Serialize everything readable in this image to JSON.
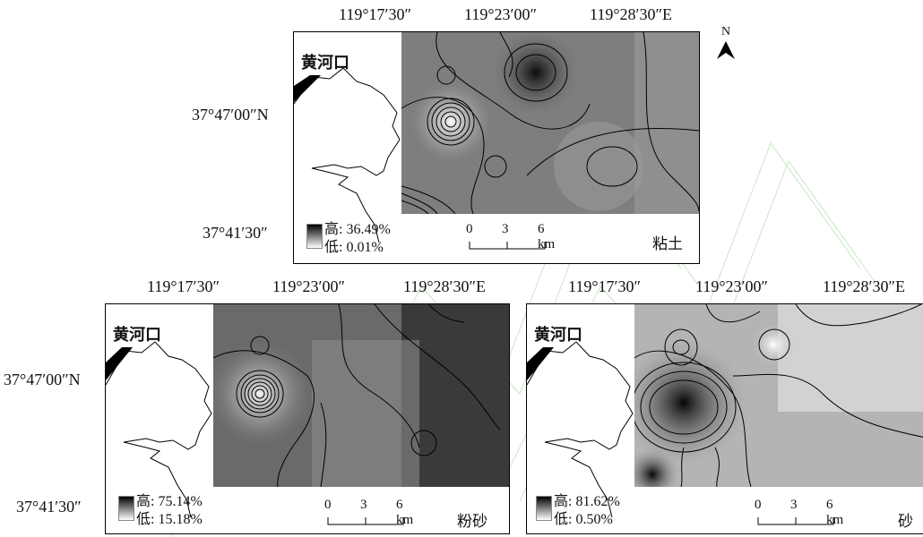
{
  "top": {
    "lon_ticks": [
      "119°17′30″",
      "119°23′00″",
      "119°28′30″E"
    ],
    "lat_ticks": [
      "37°47′00″N",
      "37°41′30″"
    ],
    "place_label": "黄河口",
    "legend": {
      "high": "高: 36.49%",
      "low": "低: 0.01%"
    },
    "scale": {
      "ticks": [
        "0",
        "3",
        "6 km"
      ]
    },
    "title": "粘土",
    "north": "N"
  },
  "bottom_left": {
    "lon_ticks": [
      "119°17′30″",
      "119°23′00″",
      "119°28′30″E"
    ],
    "lat_ticks": [
      "37°47′00″N",
      "37°41′30″"
    ],
    "place_label": "黄河口",
    "legend": {
      "high": "高: 75.14%",
      "low": "低: 15.18%"
    },
    "scale": {
      "ticks": [
        "0",
        "3",
        "6 km"
      ]
    },
    "title": "粉砂"
  },
  "bottom_right": {
    "lon_ticks": [
      "119°17′30″",
      "119°23′00″",
      "119°28′30″E"
    ],
    "place_label": "黄河口",
    "legend": {
      "high": "高: 81.62%",
      "low": "低: 0.50%"
    },
    "scale": {
      "ticks": [
        "0",
        "3",
        "6 km"
      ]
    },
    "title": "砂"
  }
}
